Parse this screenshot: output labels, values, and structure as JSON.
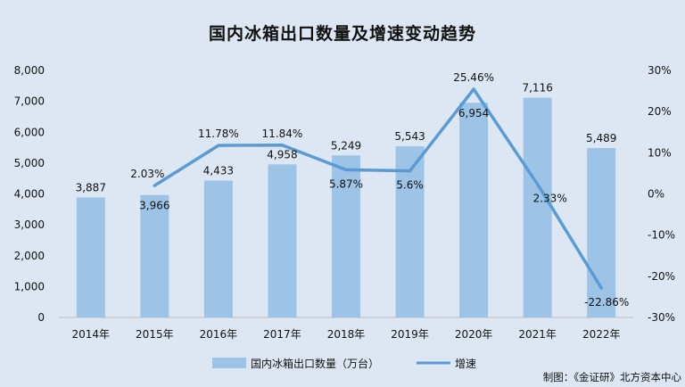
{
  "chart_data": {
    "type": "bar",
    "title": "国内冰箱出口数量及增速变动趋势",
    "categories": [
      "2014年",
      "2015年",
      "2016年",
      "2017年",
      "2018年",
      "2019年",
      "2020年",
      "2021年",
      "2022年"
    ],
    "series": [
      {
        "name": "国内冰箱出口数量（万台）",
        "type": "bar",
        "axis": "left",
        "color": "#9dc3e6",
        "values": [
          3887,
          3966,
          4433,
          4958,
          5249,
          5543,
          6954,
          7116,
          5489
        ],
        "labels": [
          "3,887",
          "3,966",
          "4,433",
          "4,958",
          "5,249",
          "5,543",
          "6,954",
          "7,116",
          "5,489"
        ]
      },
      {
        "name": "增速",
        "type": "line",
        "axis": "right",
        "color": "#5b9bd5",
        "values": [
          null,
          2.03,
          11.78,
          11.84,
          5.87,
          5.6,
          25.46,
          2.33,
          -22.86
        ],
        "labels": [
          "",
          "2.03%",
          "11.78%",
          "11.84%",
          "5.87%",
          "5.6%",
          "25.46%",
          "2.33%",
          "-22.86%"
        ]
      }
    ],
    "y_left": {
      "range": [
        0,
        8000
      ],
      "ticks": [
        "0",
        "1,000",
        "2,000",
        "3,000",
        "4,000",
        "5,000",
        "6,000",
        "7,000",
        "8,000"
      ]
    },
    "y_right": {
      "range": [
        -30,
        30
      ],
      "ticks": [
        "-30%",
        "-20%",
        "-10%",
        "0%",
        "10%",
        "20%",
        "30%"
      ]
    },
    "grid": false,
    "legend": "bottom"
  },
  "source": "制图：《金证研》北方资本中心",
  "colors": {
    "background": "#dde7f3",
    "bar": "#9dc3e6",
    "line": "#5b9bd5",
    "axis": "#bfbfbf"
  }
}
